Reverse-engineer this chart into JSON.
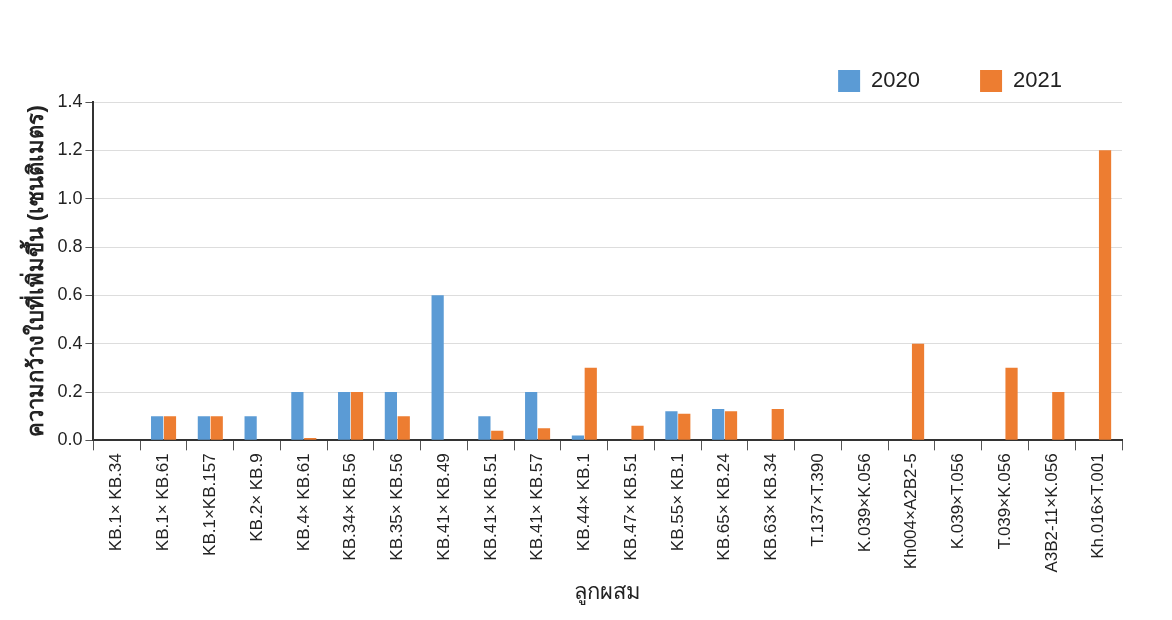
{
  "chart_data": {
    "type": "bar",
    "xlabel": "ลูกผสม",
    "ylabel": "ความกว้างใบที่เพิ่มขึ้น (เซนติเมตร)",
    "categories": [
      "KB.1× KB.34",
      "KB.1× KB.61",
      "KB.1×KB.157",
      "KB.2× KB.9",
      "KB.4× KB.61",
      "KB.34× KB.56",
      "KB.35× KB.56",
      "KB.41× KB.49",
      "KB.41× KB.51",
      "KB.41× KB.57",
      "KB.44× KB.1",
      "KB.47× KB.51",
      "KB.55× KB.1",
      "KB.65× KB.24",
      "KB.63× KB.34",
      "T.137×T.390",
      "K.039×K.056",
      "Kh004×A2B2-5",
      "K.039×T.056",
      "T.039×K.056",
      "A3B2-11×K.056",
      "Kh.016×T.001"
    ],
    "series": [
      {
        "name": "2020",
        "color": "#5b9bd5",
        "values": [
          null,
          0.1,
          0.1,
          0.1,
          0.2,
          0.2,
          0.2,
          0.6,
          0.1,
          0.2,
          0.02,
          null,
          0.12,
          0.13,
          null,
          null,
          null,
          null,
          null,
          null,
          null,
          null
        ]
      },
      {
        "name": "2021",
        "color": "#ed7d31",
        "values": [
          null,
          0.1,
          0.1,
          null,
          0.01,
          0.2,
          0.1,
          null,
          0.04,
          0.05,
          0.3,
          0.06,
          0.11,
          0.12,
          0.13,
          null,
          null,
          0.4,
          null,
          0.3,
          0.2,
          1.2
        ]
      }
    ],
    "ylim": [
      0,
      1.4
    ],
    "yticks": [
      {
        "value": 0,
        "label": "0.0"
      },
      {
        "value": 0.2,
        "label": "0.2"
      },
      {
        "value": 0.4,
        "label": "0.4"
      },
      {
        "value": 0.6,
        "label": "0.6"
      },
      {
        "value": 0.8,
        "label": "0.8"
      },
      {
        "value": 1,
        "label": "1.0"
      },
      {
        "value": 1.2,
        "label": "1.2"
      },
      {
        "value": 1.4,
        "label": "1.4"
      }
    ],
    "grid": "y",
    "legend": "top right"
  }
}
